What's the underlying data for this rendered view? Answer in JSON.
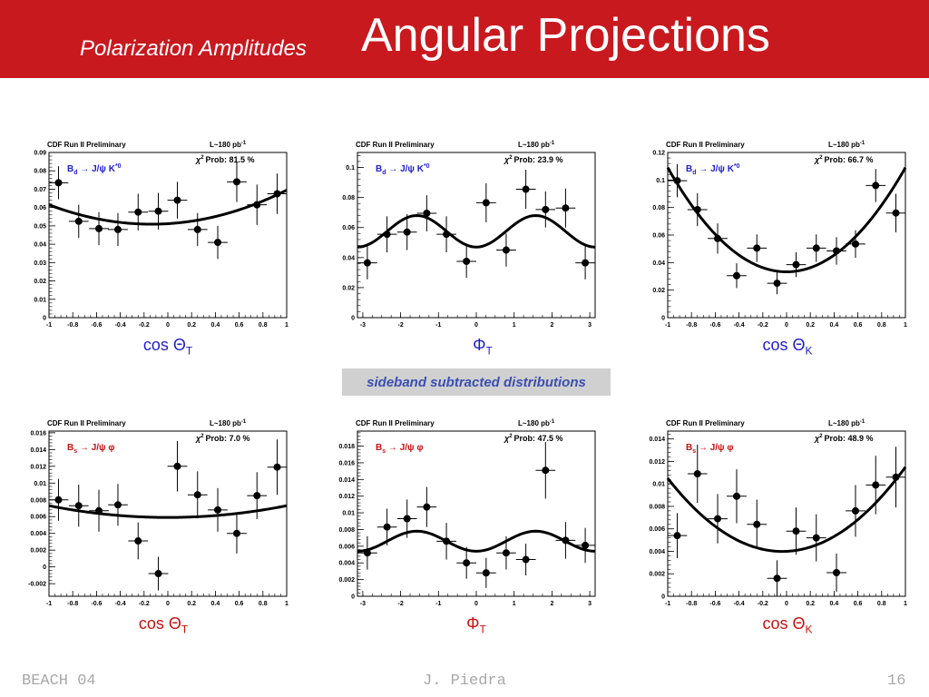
{
  "slide": {
    "subtitle": "Polarization Amplitudes",
    "title": "Angular Projections",
    "sideband_note": "sideband subtracted distributions",
    "footer_left": "BEACH 04",
    "footer_center": "J. Piedra",
    "footer_right": "16"
  },
  "colors": {
    "title_bar": "#c8191f",
    "bd_label": "#1f1fcc",
    "bs_label": "#cc1010",
    "sideband_text": "#3c4fb0",
    "sideband_bg": "#d0d0d0"
  },
  "chart_data": [
    {
      "type": "scatter",
      "name": "bd-cos-theta-t",
      "header_left": "CDF Run II Preliminary",
      "lumi": "L~180 pb",
      "lumi_sup": "-1",
      "chi2_label": "Prob: 81.5 %",
      "decay": {
        "meson": "B",
        "sub": "d",
        "rest": " → J/ψ K",
        "sup": "*0"
      },
      "axis_label": {
        "main": "cos Θ",
        "sub": "T"
      },
      "xlim": [
        -1,
        1
      ],
      "ylim": [
        0,
        0.09
      ],
      "xticks": [
        -1,
        -0.8,
        -0.6,
        -0.4,
        -0.2,
        0,
        0.2,
        0.4,
        0.6,
        0.8,
        1
      ],
      "yticks": [
        0,
        0.01,
        0.02,
        0.03,
        0.04,
        0.05,
        0.06,
        0.07,
        0.08,
        0.09
      ],
      "xerr": 0.083,
      "points": [
        {
          "x": -0.92,
          "y": 0.0735,
          "err": 0.009
        },
        {
          "x": -0.75,
          "y": 0.0525,
          "err": 0.009
        },
        {
          "x": -0.58,
          "y": 0.0485,
          "err": 0.009
        },
        {
          "x": -0.42,
          "y": 0.048,
          "err": 0.009
        },
        {
          "x": -0.25,
          "y": 0.0575,
          "err": 0.01
        },
        {
          "x": -0.08,
          "y": 0.058,
          "err": 0.01
        },
        {
          "x": 0.08,
          "y": 0.064,
          "err": 0.01
        },
        {
          "x": 0.25,
          "y": 0.048,
          "err": 0.009
        },
        {
          "x": 0.42,
          "y": 0.041,
          "err": 0.009
        },
        {
          "x": 0.58,
          "y": 0.074,
          "err": 0.011
        },
        {
          "x": 0.75,
          "y": 0.0615,
          "err": 0.011
        },
        {
          "x": 0.92,
          "y": 0.0675,
          "err": 0.011
        }
      ],
      "fit": {
        "form": "poly2",
        "a": 0.0512,
        "b": 0.004,
        "c": 0.0143
      }
    },
    {
      "type": "scatter",
      "name": "bd-phi-t",
      "header_left": "CDF Run II Preliminary",
      "lumi": "L~180 pb",
      "lumi_sup": "-1",
      "chi2_label": "Prob: 23.9 %",
      "decay": {
        "meson": "B",
        "sub": "d",
        "rest": " → J/ψ K",
        "sup": "*0"
      },
      "axis_label": {
        "main": "Φ",
        "sub": "T"
      },
      "xlim": [
        -3.1416,
        3.1416
      ],
      "ylim": [
        0,
        0.11
      ],
      "xticks": [
        -3,
        -2,
        -1,
        0,
        1,
        2,
        3
      ],
      "yticks": [
        0,
        0.02,
        0.04,
        0.06,
        0.08,
        0.1
      ],
      "xerr": 0.26,
      "points": [
        {
          "x": -2.88,
          "y": 0.0365,
          "err": 0.011
        },
        {
          "x": -2.36,
          "y": 0.0555,
          "err": 0.012
        },
        {
          "x": -1.83,
          "y": 0.057,
          "err": 0.012
        },
        {
          "x": -1.31,
          "y": 0.0695,
          "err": 0.012
        },
        {
          "x": -0.79,
          "y": 0.0555,
          "err": 0.012
        },
        {
          "x": -0.26,
          "y": 0.0375,
          "err": 0.011
        },
        {
          "x": 0.26,
          "y": 0.0765,
          "err": 0.013
        },
        {
          "x": 0.79,
          "y": 0.045,
          "err": 0.011
        },
        {
          "x": 1.31,
          "y": 0.0855,
          "err": 0.013
        },
        {
          "x": 1.83,
          "y": 0.072,
          "err": 0.012
        },
        {
          "x": 2.36,
          "y": 0.073,
          "err": 0.013
        },
        {
          "x": 2.88,
          "y": 0.0365,
          "err": 0.011
        }
      ],
      "fit": {
        "form": "cos2phi",
        "a": 0.0575,
        "b": -0.0105,
        "phase": 0.0
      }
    },
    {
      "type": "scatter",
      "name": "bd-cos-theta-k",
      "header_left": "CDF Run II Preliminary",
      "lumi": "L~180 pb",
      "lumi_sup": "-1",
      "chi2_label": "Prob: 66.7 %",
      "decay": {
        "meson": "B",
        "sub": "d",
        "rest": " → J/ψ K",
        "sup": "*0"
      },
      "axis_label": {
        "main": "cos Θ",
        "sub": "K"
      },
      "xlim": [
        -1,
        1
      ],
      "ylim": [
        0,
        0.12
      ],
      "xticks": [
        -1,
        -0.8,
        -0.6,
        -0.4,
        -0.2,
        0,
        0.2,
        0.4,
        0.6,
        0.8,
        1
      ],
      "yticks": [
        0,
        0.02,
        0.04,
        0.06,
        0.08,
        0.1,
        0.12
      ],
      "xerr": 0.083,
      "points": [
        {
          "x": -0.92,
          "y": 0.0995,
          "err": 0.012
        },
        {
          "x": -0.75,
          "y": 0.0785,
          "err": 0.012
        },
        {
          "x": -0.58,
          "y": 0.0575,
          "err": 0.011
        },
        {
          "x": -0.42,
          "y": 0.0305,
          "err": 0.009
        },
        {
          "x": -0.25,
          "y": 0.0505,
          "err": 0.01
        },
        {
          "x": -0.08,
          "y": 0.025,
          "err": 0.008
        },
        {
          "x": 0.08,
          "y": 0.0385,
          "err": 0.009
        },
        {
          "x": 0.25,
          "y": 0.0505,
          "err": 0.01
        },
        {
          "x": 0.42,
          "y": 0.0485,
          "err": 0.01
        },
        {
          "x": 0.58,
          "y": 0.0535,
          "err": 0.01
        },
        {
          "x": 0.75,
          "y": 0.096,
          "err": 0.012
        },
        {
          "x": 0.92,
          "y": 0.076,
          "err": 0.014
        }
      ],
      "fit": {
        "form": "poly2",
        "a": 0.0333,
        "b": -0.0,
        "c": 0.0757
      }
    },
    {
      "type": "scatter",
      "name": "bs-cos-theta-t",
      "header_left": "CDF Run II Preliminary",
      "lumi": "L~180 pb",
      "lumi_sup": "-1",
      "chi2_label": "Prob: 7.0 %",
      "decay": {
        "meson": "B",
        "sub": "s",
        "rest": " → J/ψ φ",
        "sup": ""
      },
      "axis_label": {
        "main": "cos Θ",
        "sub": "T"
      },
      "xlim": [
        -1,
        1
      ],
      "ylim": [
        -0.0035,
        0.0162
      ],
      "xticks": [
        -1,
        -0.8,
        -0.6,
        -0.4,
        -0.2,
        0,
        0.2,
        0.4,
        0.6,
        0.8,
        1
      ],
      "yticks": [
        -0.002,
        0,
        0.002,
        0.004,
        0.006,
        0.008,
        0.01,
        0.012,
        0.014,
        0.016
      ],
      "xerr": 0.083,
      "points": [
        {
          "x": -0.92,
          "y": 0.008,
          "err": 0.0025
        },
        {
          "x": -0.75,
          "y": 0.0073,
          "err": 0.0025
        },
        {
          "x": -0.58,
          "y": 0.0067,
          "err": 0.0025
        },
        {
          "x": -0.42,
          "y": 0.0074,
          "err": 0.0025
        },
        {
          "x": -0.25,
          "y": 0.0031,
          "err": 0.0022
        },
        {
          "x": -0.08,
          "y": -0.0008,
          "err": 0.002
        },
        {
          "x": 0.08,
          "y": 0.012,
          "err": 0.003
        },
        {
          "x": 0.25,
          "y": 0.0086,
          "err": 0.0028
        },
        {
          "x": 0.42,
          "y": 0.0068,
          "err": 0.0026
        },
        {
          "x": 0.58,
          "y": 0.004,
          "err": 0.0024
        },
        {
          "x": 0.75,
          "y": 0.0085,
          "err": 0.0028
        },
        {
          "x": 0.92,
          "y": 0.0119,
          "err": 0.0033
        }
      ],
      "fit": {
        "form": "poly2",
        "a": 0.0059,
        "b": 0.0,
        "c": 0.0014
      }
    },
    {
      "type": "scatter",
      "name": "bs-phi-t",
      "header_left": "CDF Run II Preliminary",
      "lumi": "L~180 pb",
      "lumi_sup": "-1",
      "chi2_label": "Prob: 47.5 %",
      "decay": {
        "meson": "B",
        "sub": "s",
        "rest": " → J/ψ φ",
        "sup": ""
      },
      "axis_label": {
        "main": "Φ",
        "sub": "T"
      },
      "xlim": [
        -3.1416,
        3.1416
      ],
      "ylim": [
        0,
        0.0198
      ],
      "xticks": [
        -3,
        -2,
        -1,
        0,
        1,
        2,
        3
      ],
      "yticks": [
        0,
        0.002,
        0.004,
        0.006,
        0.008,
        0.01,
        0.012,
        0.014,
        0.016,
        0.018
      ],
      "xerr": 0.26,
      "points": [
        {
          "x": -2.88,
          "y": 0.0052,
          "err": 0.002
        },
        {
          "x": -2.36,
          "y": 0.0083,
          "err": 0.0022
        },
        {
          "x": -1.83,
          "y": 0.0093,
          "err": 0.0023
        },
        {
          "x": -1.31,
          "y": 0.0107,
          "err": 0.0024
        },
        {
          "x": -0.79,
          "y": 0.0066,
          "err": 0.0022
        },
        {
          "x": -0.26,
          "y": 0.004,
          "err": 0.0019
        },
        {
          "x": 0.26,
          "y": 0.0028,
          "err": 0.0018
        },
        {
          "x": 0.79,
          "y": 0.0052,
          "err": 0.002
        },
        {
          "x": 1.31,
          "y": 0.0044,
          "err": 0.0019
        },
        {
          "x": 1.83,
          "y": 0.0151,
          "err": 0.0034
        },
        {
          "x": 2.36,
          "y": 0.0067,
          "err": 0.0022
        },
        {
          "x": 2.88,
          "y": 0.0061,
          "err": 0.0021
        }
      ],
      "fit": {
        "form": "cos2phi",
        "a": 0.0066,
        "b": -0.0012,
        "phase": 0.0
      }
    },
    {
      "type": "scatter",
      "name": "bs-cos-theta-k",
      "header_left": "CDF Run II Preliminary",
      "lumi": "L~180 pb",
      "lumi_sup": "-1",
      "chi2_label": "Prob: 48.9 %",
      "decay": {
        "meson": "B",
        "sub": "s",
        "rest": " → J/ψ φ",
        "sup": ""
      },
      "axis_label": {
        "main": "cos Θ",
        "sub": "K"
      },
      "xlim": [
        -1,
        1
      ],
      "ylim": [
        0,
        0.0147
      ],
      "xticks": [
        -1,
        -0.8,
        -0.6,
        -0.4,
        -0.2,
        0,
        0.2,
        0.4,
        0.6,
        0.8,
        1
      ],
      "yticks": [
        0,
        0.002,
        0.004,
        0.006,
        0.008,
        0.01,
        0.012,
        0.014
      ],
      "xerr": 0.083,
      "points": [
        {
          "x": -0.92,
          "y": 0.0054,
          "err": 0.002
        },
        {
          "x": -0.75,
          "y": 0.0109,
          "err": 0.0026
        },
        {
          "x": -0.58,
          "y": 0.0069,
          "err": 0.0022
        },
        {
          "x": -0.42,
          "y": 0.0089,
          "err": 0.0024
        },
        {
          "x": -0.25,
          "y": 0.0064,
          "err": 0.0022
        },
        {
          "x": -0.08,
          "y": 0.0016,
          "err": 0.0016
        },
        {
          "x": 0.08,
          "y": 0.0058,
          "err": 0.0021
        },
        {
          "x": 0.25,
          "y": 0.0052,
          "err": 0.0021
        },
        {
          "x": 0.42,
          "y": 0.0021,
          "err": 0.0017
        },
        {
          "x": 0.58,
          "y": 0.0076,
          "err": 0.0023
        },
        {
          "x": 0.75,
          "y": 0.0099,
          "err": 0.0026
        },
        {
          "x": 0.92,
          "y": 0.0106,
          "err": 0.0027
        }
      ],
      "fit": {
        "form": "poly2",
        "a": 0.004,
        "b": 0.0005,
        "c": 0.007
      }
    }
  ]
}
